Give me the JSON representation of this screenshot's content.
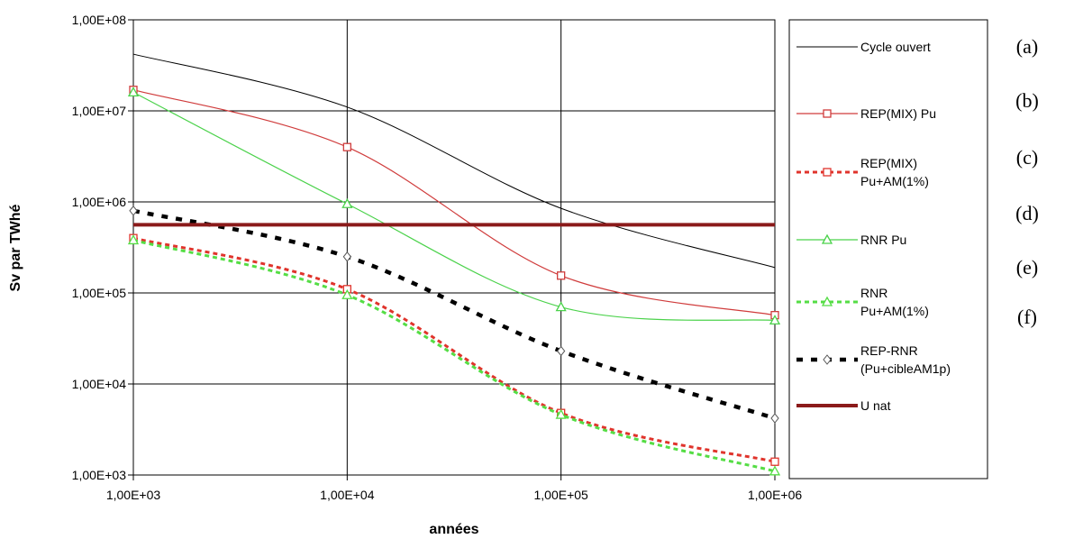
{
  "chart_data": {
    "type": "line",
    "xscale": "log",
    "yscale": "log",
    "xlim": [
      1000,
      1000000
    ],
    "ylim": [
      1000,
      100000000
    ],
    "xlabel": "années",
    "ylabel": "Sv par TWhé",
    "x_ticks": [
      "1,00E+03",
      "1,00E+04",
      "1,00E+05",
      "1,00E+06"
    ],
    "y_ticks": [
      "1,00E+03",
      "1,00E+04",
      "1,00E+05",
      "1,00E+06",
      "1,00E+07",
      "1,00E+08"
    ],
    "grid": true,
    "legend_position": "right",
    "x": [
      1000,
      10000,
      100000,
      1000000
    ],
    "series": [
      {
        "name": "Cycle ouvert",
        "label_lines": [
          "Cycle ouvert"
        ],
        "tag": "(a)",
        "color": "#000000",
        "style": "solid",
        "width": 1,
        "marker": "none",
        "values": [
          42000000,
          11000000,
          850000,
          190000
        ]
      },
      {
        "name": "REP(MIX) Pu",
        "label_lines": [
          "REP(MIX) Pu"
        ],
        "tag": "(b)",
        "color": "#d03c3c",
        "style": "solid",
        "width": 1.2,
        "marker": "square",
        "values": [
          17000000,
          4000000,
          155000,
          57000
        ]
      },
      {
        "name": "REP(MIX) Pu+AM(1%)",
        "label_lines": [
          "REP(MIX)",
          "Pu+AM(1%)"
        ],
        "tag": "(c)",
        "color": "#e0342c",
        "style": "dashed",
        "width": 3,
        "marker": "square",
        "values": [
          400000,
          110000,
          4800,
          1400
        ]
      },
      {
        "name": "RNR Pu",
        "label_lines": [
          "RNR Pu"
        ],
        "tag": "(d)",
        "color": "#4bd24b",
        "style": "solid",
        "width": 1.2,
        "marker": "triangle",
        "values": [
          16000000,
          950000,
          70000,
          50000
        ]
      },
      {
        "name": "RNR Pu+AM(1%)",
        "label_lines": [
          "RNR",
          "Pu+AM(1%)"
        ],
        "tag": "(e)",
        "color": "#55dd45",
        "style": "dashed",
        "width": 3,
        "marker": "triangle",
        "values": [
          380000,
          95000,
          4600,
          1100
        ]
      },
      {
        "name": "REP-RNR (Pu+cibleAM1p)",
        "label_lines": [
          "REP-RNR",
          "(Pu+cibleAM1p)"
        ],
        "tag": "(f)",
        "color": "#000000",
        "style": "dashed",
        "width": 4.5,
        "marker": "diamond",
        "values": [
          800000,
          250000,
          23000,
          4200
        ]
      },
      {
        "name": "U nat",
        "label_lines": [
          "U nat"
        ],
        "tag": "",
        "color": "#8b1a1a",
        "style": "solid",
        "width": 4,
        "marker": "none",
        "values": [
          560000,
          560000,
          560000,
          560000
        ]
      }
    ]
  }
}
